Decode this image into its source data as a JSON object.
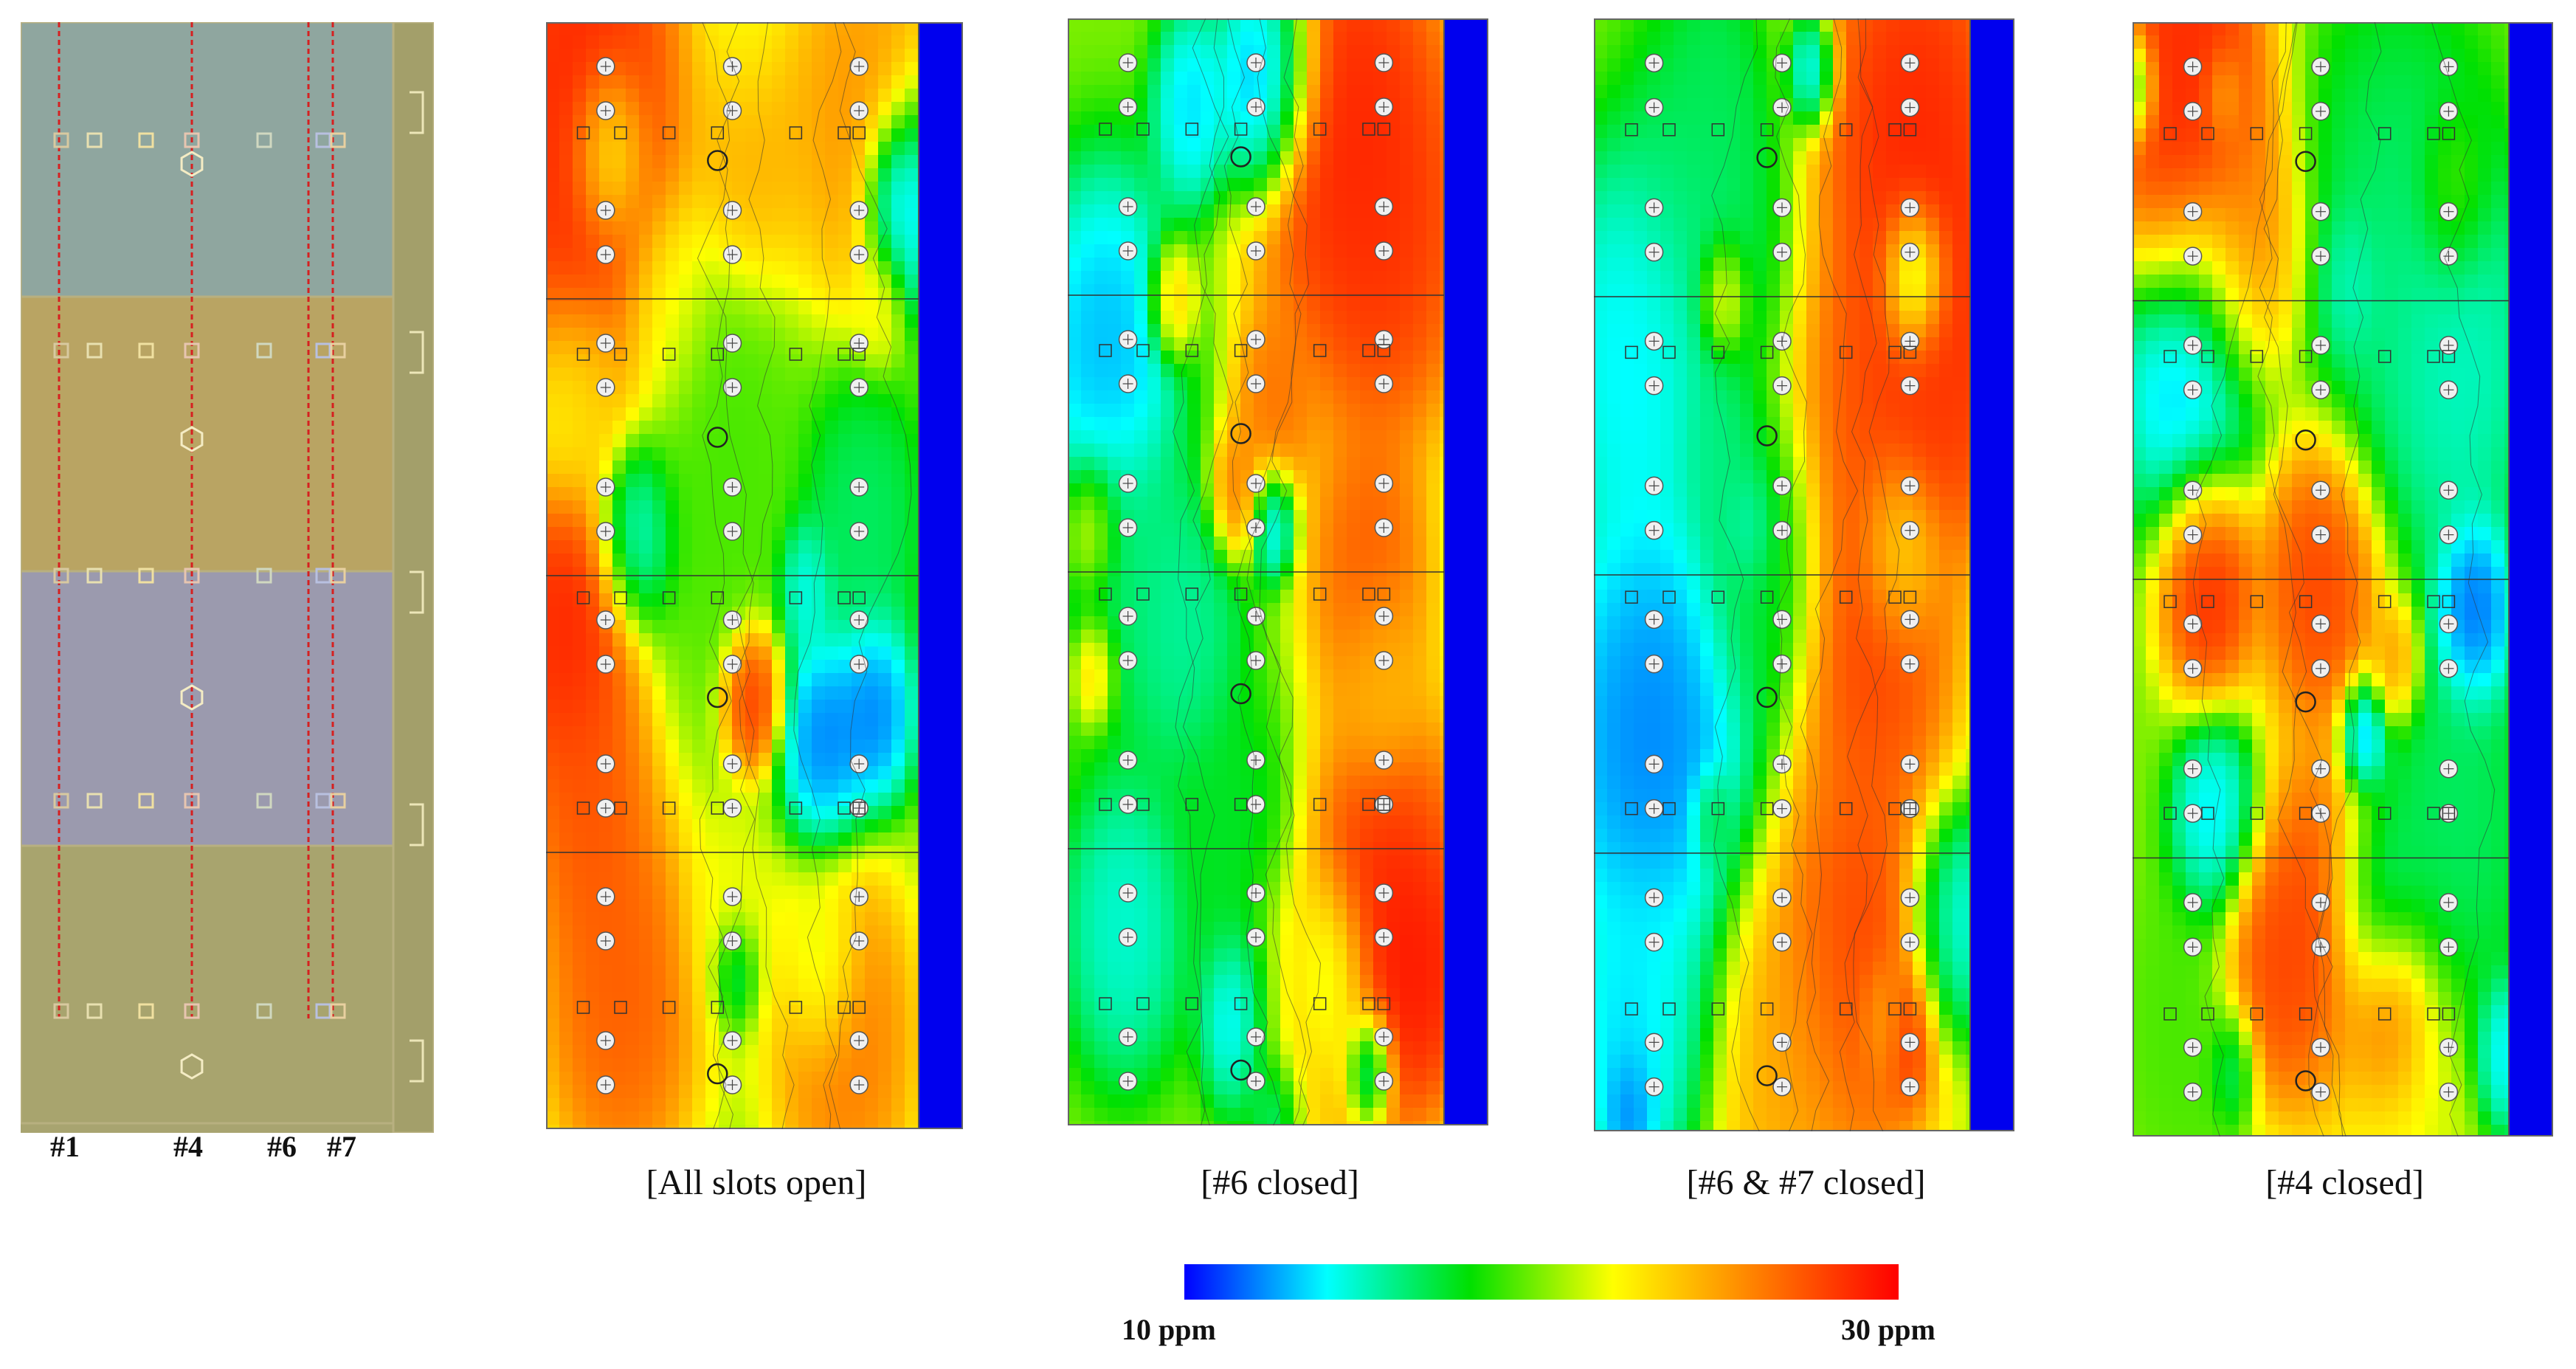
{
  "layout_diagram": {
    "zone_colors": [
      "#8fa69f",
      "#b9a463",
      "#9b9aae",
      "#a8a46e"
    ],
    "frame_color": "#b8b080",
    "slot_lines_color": "#d62020",
    "slot_labels": [
      "#1",
      "#4",
      "#6",
      "#7"
    ]
  },
  "maps": [
    {
      "label": "[All slots open]",
      "variant": "all_open"
    },
    {
      "label": "[#6 closed]",
      "variant": "six_closed"
    },
    {
      "label": "[#6 & #7 closed]",
      "variant": "six_seven_closed"
    },
    {
      "label": "[#4 closed]",
      "variant": "four_closed"
    }
  ],
  "colorbar": {
    "min_label": "10 ppm",
    "max_label": "30 ppm",
    "min_value": 10,
    "max_value": 30,
    "stops": [
      "#0000ff",
      "#00ffff",
      "#00e000",
      "#ffff00",
      "#ff8000",
      "#ff0000"
    ]
  },
  "wall_color": "#0000ee"
}
